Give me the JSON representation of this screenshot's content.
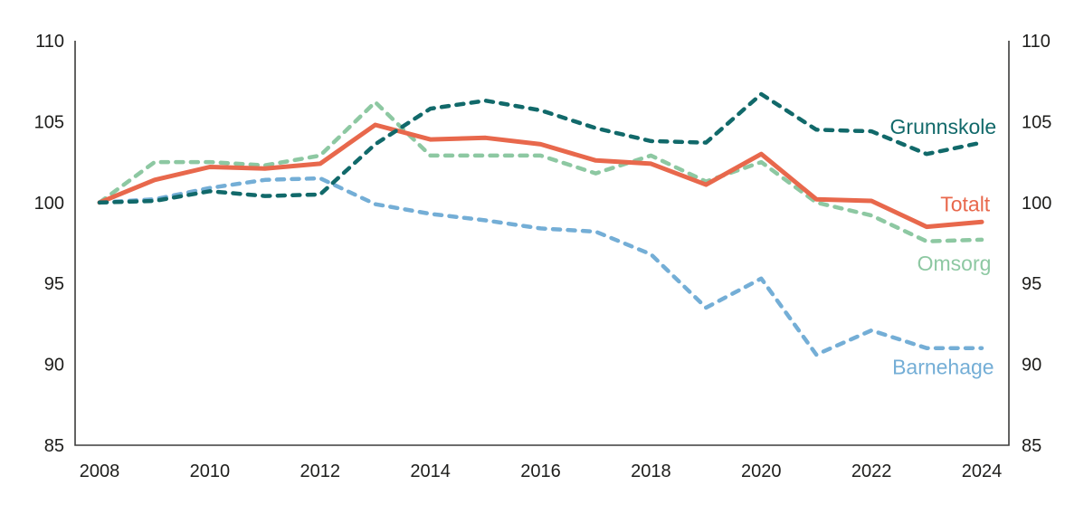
{
  "figure": {
    "background": "#ffffff",
    "axis_color": "#3c3c3b",
    "tick_label_color": "#1d1d1b"
  },
  "chart_data": {
    "type": "line",
    "title": "",
    "xlabel": "",
    "ylabel": "",
    "x": [
      2008,
      2009,
      2010,
      2011,
      2012,
      2013,
      2014,
      2015,
      2016,
      2017,
      2018,
      2019,
      2020,
      2021,
      2022,
      2023,
      2024
    ],
    "x_ticks": [
      2008,
      2010,
      2012,
      2014,
      2016,
      2018,
      2020,
      2022,
      2024
    ],
    "x_tick_labels": [
      "2008",
      "2010",
      "2012",
      "2014",
      "2016",
      "2018",
      "2020",
      "2022",
      "2024"
    ],
    "ylim": [
      85,
      110
    ],
    "y_ticks": [
      85,
      90,
      95,
      100,
      105,
      110
    ],
    "y_tick_labels": [
      "85",
      "90",
      "95",
      "100",
      "105",
      "110"
    ],
    "y_axis_sides": "both",
    "grid": false,
    "legend_position": "inline-right-labels",
    "series": [
      {
        "name": "Omsorg",
        "color": "#8dc8a2",
        "style": "dashed",
        "values": [
          100,
          102.5,
          102.5,
          102.3,
          102.9,
          106.2,
          102.9,
          102.9,
          102.9,
          101.8,
          102.9,
          101.3,
          102.5,
          100.0,
          99.2,
          97.6,
          97.7
        ],
        "label": {
          "x": 2023.5,
          "y": 96.25
        }
      },
      {
        "name": "Barnehage",
        "color": "#74aed6",
        "style": "dashed",
        "values": [
          100,
          100.2,
          100.9,
          101.4,
          101.5,
          99.9,
          99.3,
          98.9,
          98.4,
          98.2,
          96.8,
          93.5,
          95.3,
          90.6,
          92.1,
          91.0,
          91.0
        ],
        "label": {
          "x": 2023.3,
          "y": 89.85
        }
      },
      {
        "name": "Totalt",
        "color": "#e8684c",
        "style": "solid",
        "values": [
          100,
          101.4,
          102.2,
          102.1,
          102.4,
          104.8,
          103.9,
          104.0,
          103.6,
          102.6,
          102.4,
          101.1,
          103.0,
          100.2,
          100.1,
          98.5,
          98.8
        ],
        "label": {
          "x": 2023.7,
          "y": 99.9
        }
      },
      {
        "name": "Grunnskole",
        "color": "#11696a",
        "style": "dashed",
        "values": [
          100,
          100.1,
          100.7,
          100.4,
          100.5,
          103.6,
          105.8,
          106.3,
          105.7,
          104.6,
          103.8,
          103.7,
          106.7,
          104.5,
          104.4,
          103.0,
          103.7
        ],
        "label": {
          "x": 2023.3,
          "y": 104.7
        }
      }
    ]
  }
}
